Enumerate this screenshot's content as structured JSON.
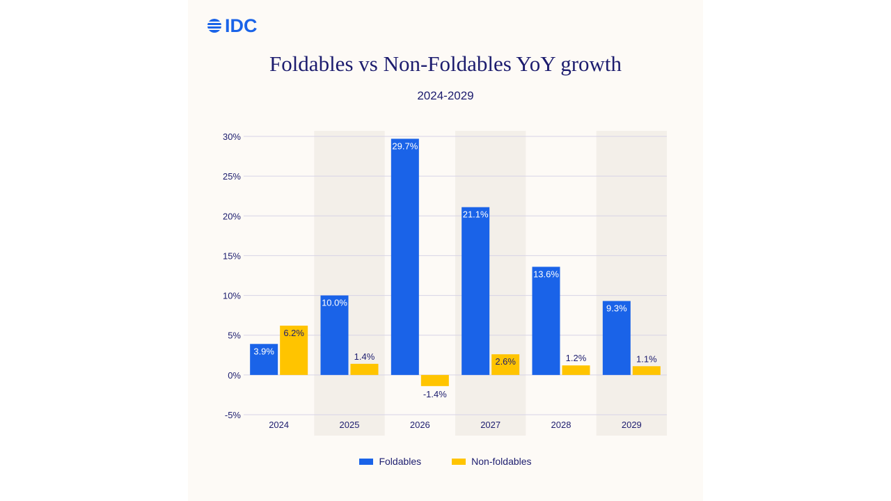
{
  "brand": {
    "logo_text": "IDC",
    "color": "#1a63e8"
  },
  "chart_data": {
    "type": "bar",
    "title": "Foldables vs Non-Foldables YoY growth",
    "subtitle": "2024-2029",
    "categories": [
      "2024",
      "2025",
      "2026",
      "2027",
      "2028",
      "2029"
    ],
    "series": [
      {
        "name": "Foldables",
        "color": "#1a63e8",
        "values": [
          3.9,
          10.0,
          29.7,
          21.1,
          13.6,
          9.3
        ],
        "labels": [
          "3.9%",
          "10.0%",
          "29.7%",
          "21.1%",
          "13.6%",
          "9.3%"
        ]
      },
      {
        "name": "Non-foldables",
        "color": "#ffc400",
        "values": [
          6.2,
          1.4,
          -1.4,
          2.6,
          1.2,
          1.1
        ],
        "labels": [
          "6.2%",
          "1.4%",
          "-1.4%",
          "2.6%",
          "1.2%",
          "1.1%"
        ]
      }
    ],
    "y_ticks": [
      "30%",
      "25%",
      "20%",
      "15%",
      "10%",
      "5%",
      "0%",
      "-5%"
    ],
    "y_tick_values": [
      30,
      25,
      20,
      15,
      10,
      5,
      0,
      -5
    ],
    "ylim": [
      -5,
      30
    ],
    "grid": true,
    "shaded_categories": [
      "2025",
      "2027",
      "2029"
    ],
    "legend_position": "bottom"
  }
}
